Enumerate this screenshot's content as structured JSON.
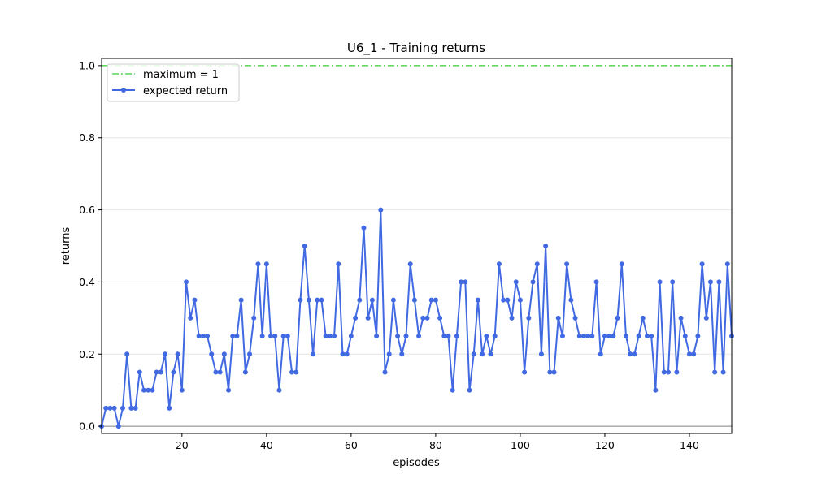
{
  "chart_data": {
    "type": "line",
    "title": "U6_1 - Training returns",
    "xlabel": "episodes",
    "ylabel": "returns",
    "xlim": [
      1,
      150
    ],
    "ylim": [
      -0.02,
      1.02
    ],
    "x_ticks": [
      20,
      40,
      60,
      80,
      100,
      120,
      140
    ],
    "x_tick_labels": [
      "20",
      "40",
      "60",
      "80",
      "100",
      "120",
      "140"
    ],
    "y_ticks": [
      0.0,
      0.2,
      0.4,
      0.6,
      0.8,
      1.0
    ],
    "y_tick_labels": [
      "0.0",
      "0.2",
      "0.4",
      "0.6",
      "0.8",
      "1.0"
    ],
    "grid": "horizontal",
    "legend_position": "top-left",
    "reference_line": {
      "name": "maximum = 1",
      "value": 1,
      "color": "#32cd32",
      "style": "dash-dot"
    },
    "series": [
      {
        "name": "expected return",
        "color": "#4169e1",
        "x_start": 1,
        "x_step": 1,
        "values": [
          0.0,
          0.05,
          0.05,
          0.05,
          0.0,
          0.05,
          0.2,
          0.05,
          0.05,
          0.15,
          0.1,
          0.1,
          0.1,
          0.15,
          0.15,
          0.2,
          0.05,
          0.15,
          0.2,
          0.1,
          0.4,
          0.3,
          0.35,
          0.25,
          0.25,
          0.25,
          0.2,
          0.15,
          0.15,
          0.2,
          0.1,
          0.25,
          0.25,
          0.35,
          0.15,
          0.2,
          0.3,
          0.45,
          0.25,
          0.45,
          0.25,
          0.25,
          0.1,
          0.25,
          0.25,
          0.15,
          0.15,
          0.35,
          0.5,
          0.35,
          0.2,
          0.35,
          0.35,
          0.25,
          0.25,
          0.25,
          0.45,
          0.2,
          0.2,
          0.25,
          0.3,
          0.35,
          0.55,
          0.3,
          0.35,
          0.25,
          0.6,
          0.15,
          0.2,
          0.35,
          0.25,
          0.2,
          0.25,
          0.45,
          0.35,
          0.25,
          0.3,
          0.3,
          0.35,
          0.35,
          0.3,
          0.25,
          0.25,
          0.1,
          0.25,
          0.4,
          0.4,
          0.1,
          0.2,
          0.35,
          0.2,
          0.25,
          0.2,
          0.25,
          0.45,
          0.35,
          0.35,
          0.3,
          0.4,
          0.35,
          0.15,
          0.3,
          0.4,
          0.45,
          0.2,
          0.5,
          0.15,
          0.15,
          0.3,
          0.25,
          0.45,
          0.35,
          0.3,
          0.25,
          0.25,
          0.25,
          0.25,
          0.4,
          0.2,
          0.25,
          0.25,
          0.25,
          0.3,
          0.45,
          0.25,
          0.2,
          0.2,
          0.25,
          0.3,
          0.25,
          0.25,
          0.1,
          0.4,
          0.15,
          0.15,
          0.4,
          0.15,
          0.3,
          0.25,
          0.2,
          0.2,
          0.25,
          0.45,
          0.3,
          0.4,
          0.15,
          0.4,
          0.15,
          0.45,
          0.25
        ]
      }
    ]
  }
}
